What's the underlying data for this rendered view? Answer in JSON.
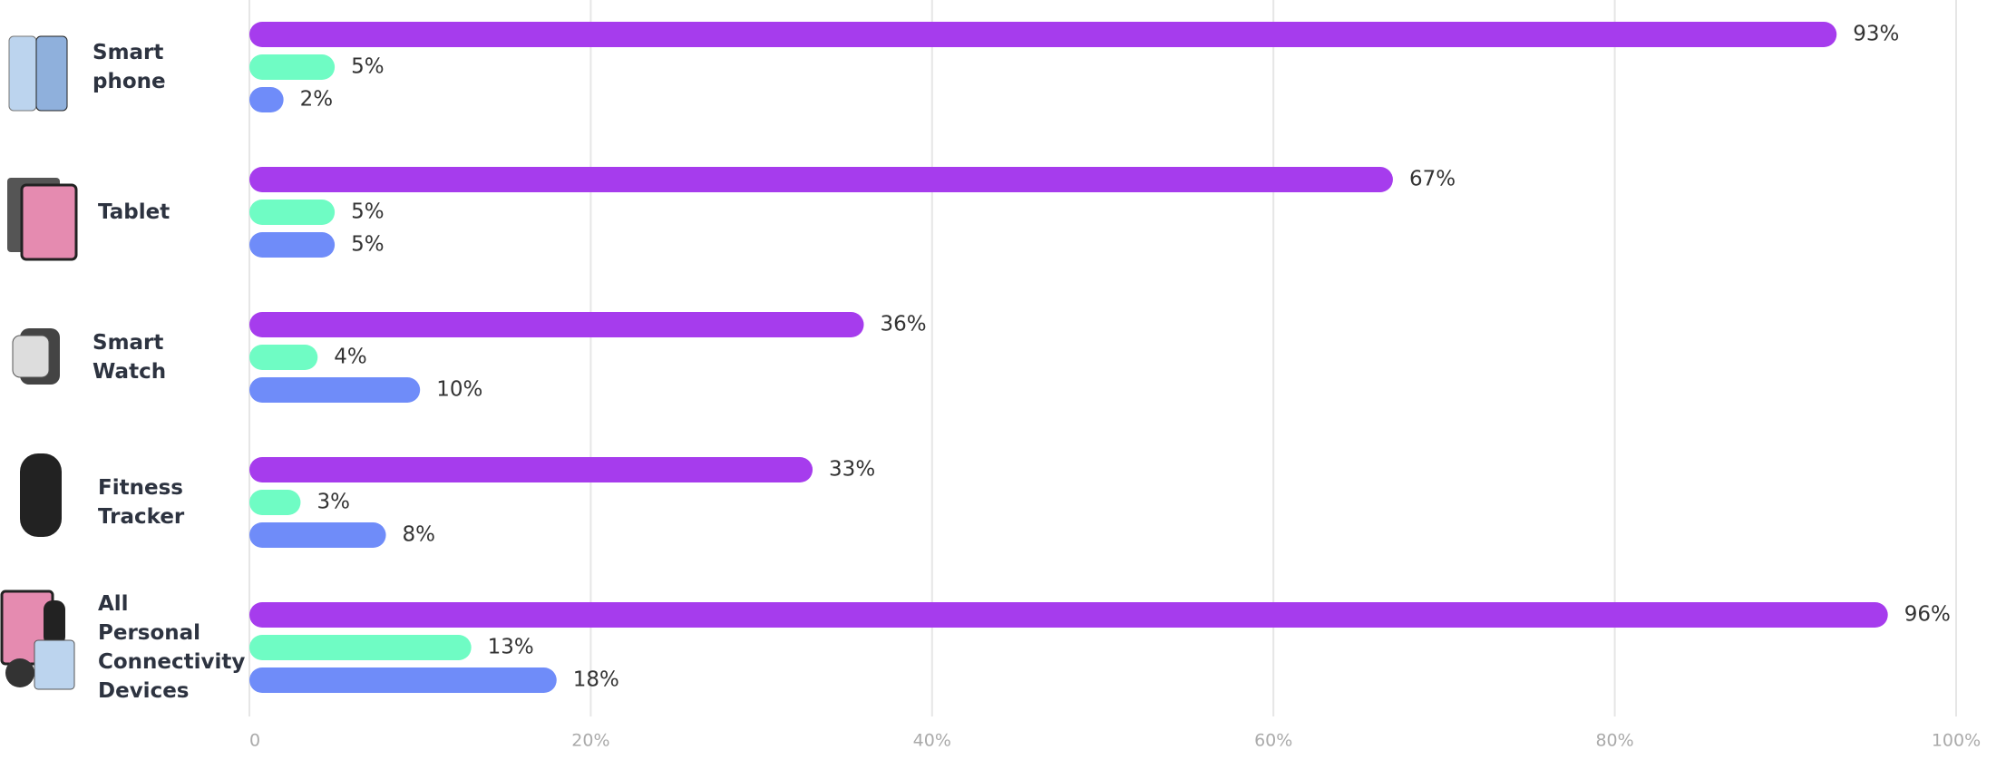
{
  "chart_data": {
    "type": "hbar",
    "categories": [
      "Smart phone",
      "Tablet",
      "Smart Watch",
      "Fitness Tracker",
      "All Personal Connectivity Devices"
    ],
    "series": [
      {
        "color": "#a63ced",
        "values": [
          93,
          67,
          36,
          33,
          96
        ],
        "value_labels": [
          "93%",
          "67%",
          "36%",
          "33%",
          "96%"
        ]
      },
      {
        "color": "#6ffcc4",
        "values": [
          5,
          5,
          4,
          3,
          13
        ],
        "value_labels": [
          "5%",
          "5%",
          "4%",
          "3%",
          "13%"
        ]
      },
      {
        "color": "#6f8cf9",
        "values": [
          2,
          5,
          10,
          8,
          18
        ],
        "value_labels": [
          "2%",
          "5%",
          "10%",
          "8%",
          "18%"
        ]
      }
    ],
    "xlim": [
      0,
      100
    ],
    "xticks": [
      0,
      {
        "value": 20,
        "label": "20%"
      },
      {
        "value": 40,
        "label": "40%"
      },
      {
        "value": 60,
        "label": "60%"
      },
      {
        "value": 80,
        "label": "80%"
      },
      {
        "value": 100,
        "label": "100%"
      }
    ],
    "grid": true
  }
}
